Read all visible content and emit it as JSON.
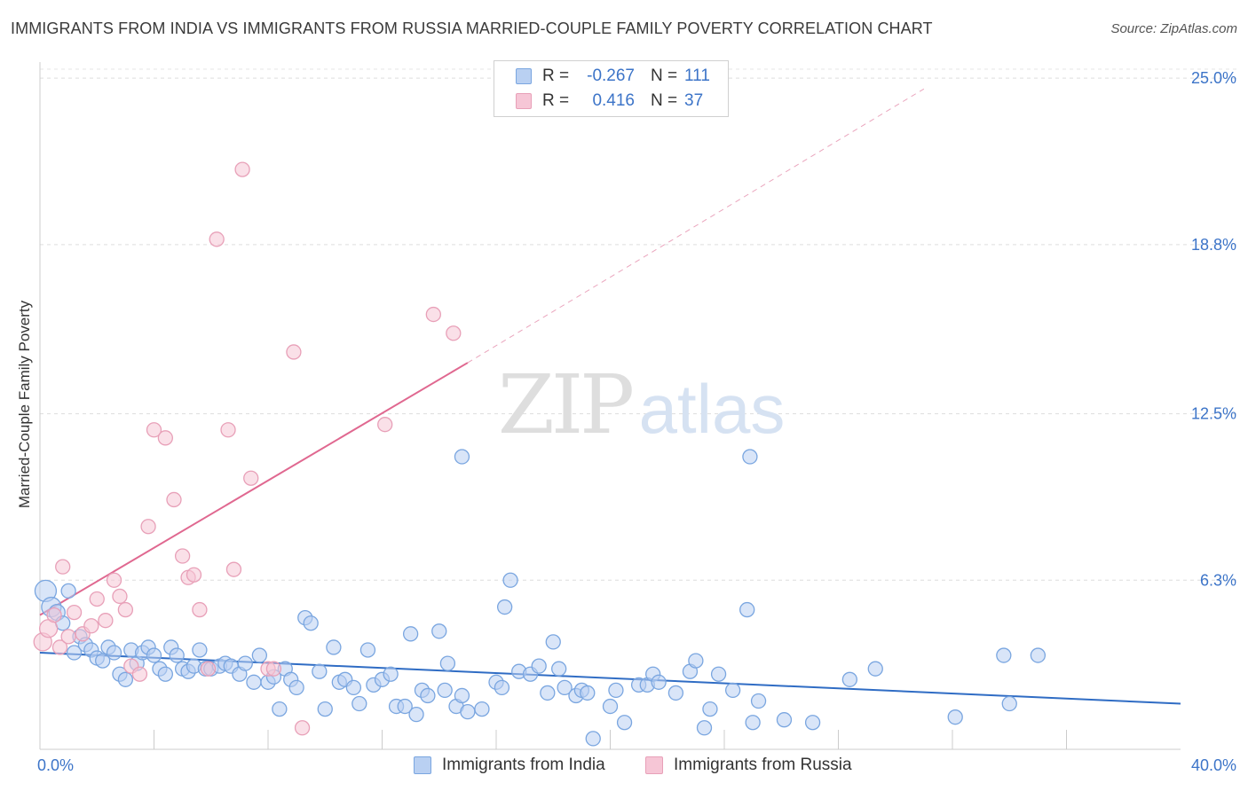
{
  "chart_data": {
    "type": "scatter",
    "title": "IMMIGRANTS FROM INDIA VS IMMIGRANTS FROM RUSSIA MARRIED-COUPLE FAMILY POVERTY CORRELATION CHART",
    "source": "Source: ZipAtlas.com",
    "watermark": {
      "zip": "ZIP",
      "atlas": "atlas"
    },
    "xlabel": "",
    "ylabel": "Married-Couple Family Poverty",
    "xlim": [
      0,
      40
    ],
    "ylim": [
      0,
      25.6
    ],
    "x_tick_labels": {
      "min": "0.0%",
      "max": "40.0%"
    },
    "y_ticks": [
      {
        "value": 6.3,
        "label": "6.3%"
      },
      {
        "value": 12.5,
        "label": "12.5%"
      },
      {
        "value": 18.8,
        "label": "18.8%"
      },
      {
        "value": 25.0,
        "label": "25.0%"
      }
    ],
    "grid": true,
    "legend": {
      "position": "top-center",
      "entries": [
        {
          "r_label": "R =",
          "r_value": "-0.267",
          "n_label": "N =",
          "n_value": "111"
        },
        {
          "r_label": "R =",
          "r_value": "0.416",
          "n_label": "N =",
          "n_value": "37"
        }
      ]
    },
    "series": [
      {
        "name": "Immigrants from India",
        "color": "#7aa6e0",
        "fill": "#b9d0f2",
        "trend": {
          "x": [
            0,
            40
          ],
          "y": [
            3.6,
            1.7
          ],
          "color": "#2f6cc4"
        },
        "points": [
          [
            0.2,
            5.9
          ],
          [
            0.4,
            5.3
          ],
          [
            0.6,
            5.1
          ],
          [
            0.8,
            4.7
          ],
          [
            1.0,
            5.9
          ],
          [
            1.2,
            3.6
          ],
          [
            1.4,
            4.2
          ],
          [
            1.6,
            3.9
          ],
          [
            1.8,
            3.7
          ],
          [
            2.0,
            3.4
          ],
          [
            2.2,
            3.3
          ],
          [
            2.4,
            3.8
          ],
          [
            2.6,
            3.6
          ],
          [
            2.8,
            2.8
          ],
          [
            3.0,
            2.6
          ],
          [
            3.2,
            3.7
          ],
          [
            3.4,
            3.2
          ],
          [
            3.6,
            3.6
          ],
          [
            3.8,
            3.8
          ],
          [
            4.0,
            3.5
          ],
          [
            4.2,
            3.0
          ],
          [
            4.4,
            2.8
          ],
          [
            4.6,
            3.8
          ],
          [
            4.8,
            3.5
          ],
          [
            5.0,
            3.0
          ],
          [
            5.2,
            2.9
          ],
          [
            5.4,
            3.1
          ],
          [
            5.6,
            3.7
          ],
          [
            5.8,
            3.0
          ],
          [
            6.0,
            3.0
          ],
          [
            6.3,
            3.1
          ],
          [
            6.5,
            3.2
          ],
          [
            6.7,
            3.1
          ],
          [
            7.0,
            2.8
          ],
          [
            7.2,
            3.2
          ],
          [
            7.5,
            2.5
          ],
          [
            7.7,
            3.5
          ],
          [
            8.0,
            2.5
          ],
          [
            8.2,
            2.7
          ],
          [
            8.4,
            1.5
          ],
          [
            8.6,
            3.0
          ],
          [
            8.8,
            2.6
          ],
          [
            9.0,
            2.3
          ],
          [
            9.3,
            4.9
          ],
          [
            9.5,
            4.7
          ],
          [
            9.8,
            2.9
          ],
          [
            10.0,
            1.5
          ],
          [
            10.3,
            3.8
          ],
          [
            10.5,
            2.5
          ],
          [
            10.7,
            2.6
          ],
          [
            11.0,
            2.3
          ],
          [
            11.2,
            1.7
          ],
          [
            11.5,
            3.7
          ],
          [
            11.7,
            2.4
          ],
          [
            12.0,
            2.6
          ],
          [
            12.3,
            2.8
          ],
          [
            12.5,
            1.6
          ],
          [
            12.8,
            1.6
          ],
          [
            13.0,
            4.3
          ],
          [
            13.2,
            1.3
          ],
          [
            13.4,
            2.2
          ],
          [
            13.6,
            2.0
          ],
          [
            14.0,
            4.4
          ],
          [
            14.2,
            2.2
          ],
          [
            14.3,
            3.2
          ],
          [
            14.6,
            1.6
          ],
          [
            14.8,
            2.0
          ],
          [
            15.0,
            1.4
          ],
          [
            15.5,
            1.5
          ],
          [
            14.8,
            10.9
          ],
          [
            16.0,
            2.5
          ],
          [
            16.2,
            2.3
          ],
          [
            16.5,
            6.3
          ],
          [
            16.3,
            5.3
          ],
          [
            16.8,
            2.9
          ],
          [
            17.2,
            2.8
          ],
          [
            17.5,
            3.1
          ],
          [
            17.8,
            2.1
          ],
          [
            18.0,
            4.0
          ],
          [
            18.2,
            3.0
          ],
          [
            18.4,
            2.3
          ],
          [
            18.8,
            2.0
          ],
          [
            19.0,
            2.2
          ],
          [
            19.2,
            2.1
          ],
          [
            19.4,
            0.4
          ],
          [
            20.0,
            1.6
          ],
          [
            20.2,
            2.2
          ],
          [
            20.5,
            1.0
          ],
          [
            21.0,
            2.4
          ],
          [
            21.3,
            2.4
          ],
          [
            21.5,
            2.8
          ],
          [
            21.7,
            2.5
          ],
          [
            22.3,
            2.1
          ],
          [
            22.8,
            2.9
          ],
          [
            23.0,
            3.3
          ],
          [
            23.3,
            0.8
          ],
          [
            23.5,
            1.5
          ],
          [
            23.8,
            2.8
          ],
          [
            24.3,
            2.2
          ],
          [
            24.8,
            5.2
          ],
          [
            24.9,
            10.9
          ],
          [
            25.0,
            1.0
          ],
          [
            25.2,
            1.8
          ],
          [
            26.1,
            1.1
          ],
          [
            27.1,
            1.0
          ],
          [
            28.4,
            2.6
          ],
          [
            29.3,
            3.0
          ],
          [
            32.1,
            1.2
          ],
          [
            33.8,
            3.5
          ],
          [
            34.0,
            1.7
          ],
          [
            35.0,
            3.5
          ]
        ]
      },
      {
        "name": "Immigrants from Russia",
        "color": "#e8a0b8",
        "fill": "#f6c6d6",
        "trend": {
          "x": [
            0,
            15
          ],
          "y": [
            5.0,
            14.4
          ],
          "dash_to": [
            31,
            24.6
          ],
          "color": "#e06890"
        },
        "points": [
          [
            0.1,
            4.0
          ],
          [
            0.3,
            4.5
          ],
          [
            0.5,
            5.0
          ],
          [
            0.7,
            3.8
          ],
          [
            0.8,
            6.8
          ],
          [
            1.0,
            4.2
          ],
          [
            1.2,
            5.1
          ],
          [
            1.5,
            4.3
          ],
          [
            1.8,
            4.6
          ],
          [
            2.0,
            5.6
          ],
          [
            2.3,
            4.8
          ],
          [
            2.6,
            6.3
          ],
          [
            2.8,
            5.7
          ],
          [
            3.0,
            5.2
          ],
          [
            3.2,
            3.1
          ],
          [
            3.5,
            2.8
          ],
          [
            3.8,
            8.3
          ],
          [
            4.0,
            11.9
          ],
          [
            4.4,
            11.6
          ],
          [
            4.7,
            9.3
          ],
          [
            5.0,
            7.2
          ],
          [
            5.2,
            6.4
          ],
          [
            5.4,
            6.5
          ],
          [
            5.6,
            5.2
          ],
          [
            5.9,
            3.0
          ],
          [
            6.2,
            19.0
          ],
          [
            6.6,
            11.9
          ],
          [
            6.8,
            6.7
          ],
          [
            7.4,
            10.1
          ],
          [
            7.1,
            21.6
          ],
          [
            8.0,
            3.0
          ],
          [
            8.2,
            3.0
          ],
          [
            8.9,
            14.8
          ],
          [
            9.2,
            0.8
          ],
          [
            12.1,
            12.1
          ],
          [
            13.8,
            16.2
          ],
          [
            14.5,
            15.5
          ]
        ]
      }
    ]
  }
}
